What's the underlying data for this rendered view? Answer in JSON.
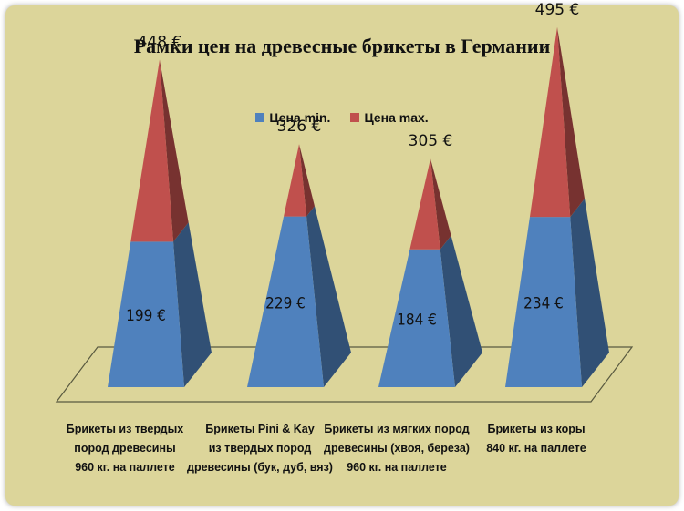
{
  "title": "Рамки цен на древесные брикеты в Германии",
  "legend": [
    {
      "label": "Цена min.",
      "color": "#4f81bd"
    },
    {
      "label": "Цена max.",
      "color": "#c0504d"
    }
  ],
  "chart_data": {
    "type": "bar",
    "style": "3d-pyramid",
    "title": "Рамки цен на древесные брикеты в Германии",
    "categories": [
      [
        "Брикеты из твердых",
        "пород древесины",
        "960 кг. на паллете"
      ],
      [
        "Брикеты Pini & Kay",
        "из твердых  пород",
        "древесины (бук, дуб, вяз)"
      ],
      [
        "Брикеты из мягких пород",
        "древесины (хвоя, береза)",
        "960 кг. на паллете"
      ],
      [
        "Брикеты из коры",
        "840 кг. на паллете"
      ]
    ],
    "series": [
      {
        "name": "Цена min.",
        "values": [
          199,
          229,
          184,
          234
        ],
        "labels": [
          "199 €",
          "229 €",
          "184 €",
          "234 €"
        ],
        "color": "#4f81bd"
      },
      {
        "name": "Цена max.",
        "values": [
          448,
          326,
          305,
          495
        ],
        "labels": [
          "448 €",
          "326 €",
          "305 €",
          "495 €"
        ],
        "color": "#c0504d"
      }
    ],
    "stacked": false,
    "legend_position": "top",
    "grid": false
  }
}
